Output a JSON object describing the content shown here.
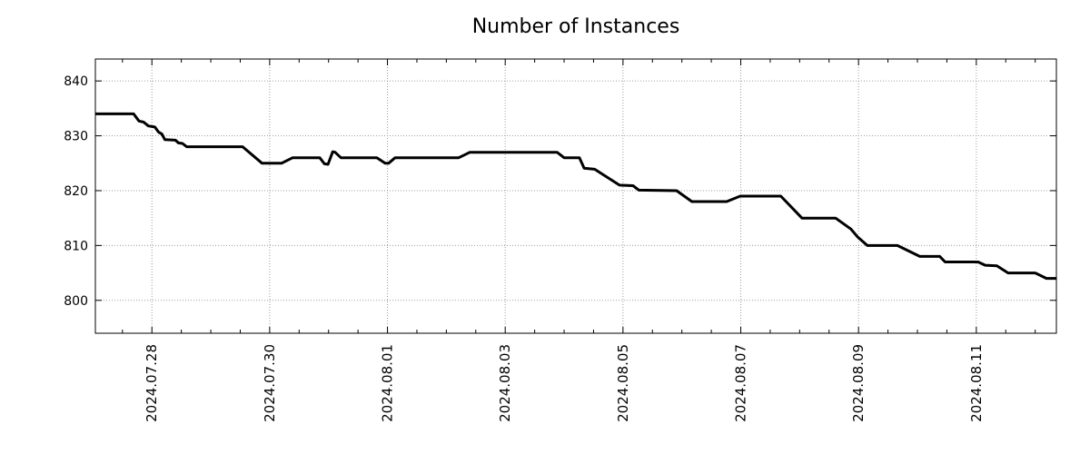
{
  "header": {
    "title": "Number of Instances"
  },
  "colors": {
    "background": "#ffffff",
    "line": "#000000",
    "grid": "#9c9c9c",
    "axis": "#000000",
    "text": "#000000"
  },
  "chart_data": {
    "type": "line",
    "title": "Number of Instances",
    "xlabel": "",
    "ylabel": "",
    "legend": "none",
    "grid": "dotted gridlines at major ticks, mirrored inward tick marks on all four axes",
    "x_unit": "days since 2024-07-27 00:00 (date axis)",
    "xlim": [
      0.04,
      16.36
    ],
    "ylim": [
      794,
      844
    ],
    "y_ticks": {
      "major": [
        800,
        810,
        820,
        830,
        840
      ]
    },
    "x_ticks": {
      "minor_step": 0.5,
      "minor_start": 0.5,
      "minor_end": 16.0,
      "major": [
        {
          "d": 1,
          "label": "2024.07.28"
        },
        {
          "d": 3,
          "label": "2024.07.30"
        },
        {
          "d": 5,
          "label": "2024.08.01"
        },
        {
          "d": 7,
          "label": "2024.08.03"
        },
        {
          "d": 9,
          "label": "2024.08.05"
        },
        {
          "d": 11,
          "label": "2024.08.07"
        },
        {
          "d": 13,
          "label": "2024.08.09"
        },
        {
          "d": 15,
          "label": "2024.08.11"
        }
      ]
    },
    "series": [
      {
        "name": "instances",
        "color": "#000000",
        "points": [
          [
            0.04,
            834
          ],
          [
            0.69,
            834
          ],
          [
            0.78,
            832.7
          ],
          [
            0.86,
            832.5
          ],
          [
            0.94,
            831.8
          ],
          [
            1.05,
            831.6
          ],
          [
            1.11,
            830.7
          ],
          [
            1.17,
            830.3
          ],
          [
            1.22,
            829.3
          ],
          [
            1.4,
            829.2
          ],
          [
            1.45,
            828.7
          ],
          [
            1.52,
            828.6
          ],
          [
            1.59,
            828
          ],
          [
            2.54,
            828
          ],
          [
            2.87,
            825
          ],
          [
            3.2,
            825
          ],
          [
            3.39,
            826
          ],
          [
            3.85,
            826
          ],
          [
            3.93,
            824.9
          ],
          [
            3.99,
            824.8
          ],
          [
            4.07,
            827.1
          ],
          [
            4.11,
            827
          ],
          [
            4.21,
            826
          ],
          [
            4.82,
            826
          ],
          [
            4.96,
            825
          ],
          [
            5.02,
            825
          ],
          [
            5.13,
            826
          ],
          [
            6.21,
            826
          ],
          [
            6.4,
            827
          ],
          [
            7.88,
            827
          ],
          [
            8.0,
            826
          ],
          [
            8.26,
            826
          ],
          [
            8.34,
            824.1
          ],
          [
            8.52,
            823.9
          ],
          [
            8.94,
            821
          ],
          [
            9.17,
            820.9
          ],
          [
            9.27,
            820.1
          ],
          [
            9.91,
            820
          ],
          [
            10.17,
            818
          ],
          [
            10.76,
            818
          ],
          [
            10.99,
            819
          ],
          [
            11.68,
            819
          ],
          [
            12.04,
            815
          ],
          [
            12.61,
            815
          ],
          [
            12.87,
            813
          ],
          [
            12.99,
            811.5
          ],
          [
            13.15,
            810
          ],
          [
            13.66,
            810
          ],
          [
            14.04,
            808
          ],
          [
            14.38,
            808
          ],
          [
            14.47,
            807
          ],
          [
            15.03,
            807
          ],
          [
            15.15,
            806.4
          ],
          [
            15.35,
            806.3
          ],
          [
            15.54,
            805
          ],
          [
            16.0,
            805
          ],
          [
            16.19,
            804
          ],
          [
            16.36,
            804
          ]
        ]
      }
    ]
  }
}
